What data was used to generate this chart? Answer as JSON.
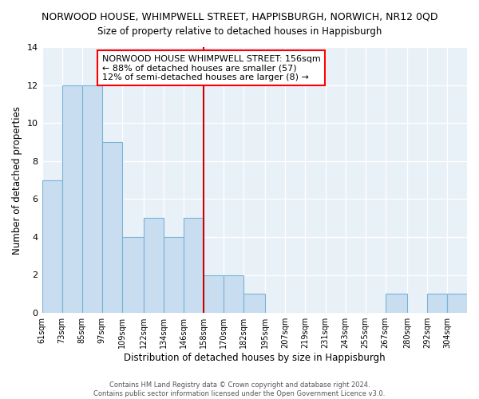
{
  "title": "NORWOOD HOUSE, WHIMPWELL STREET, HAPPISBURGH, NORWICH, NR12 0QD",
  "subtitle": "Size of property relative to detached houses in Happisburgh",
  "xlabel": "Distribution of detached houses by size in Happisburgh",
  "ylabel": "Number of detached properties",
  "bin_edges": [
    61,
    73,
    85,
    97,
    109,
    122,
    134,
    146,
    158,
    170,
    182,
    195,
    207,
    219,
    231,
    243,
    255,
    267,
    280,
    292,
    304,
    316
  ],
  "bin_labels": [
    "61sqm",
    "73sqm",
    "85sqm",
    "97sqm",
    "109sqm",
    "122sqm",
    "134sqm",
    "146sqm",
    "158sqm",
    "170sqm",
    "182sqm",
    "195sqm",
    "207sqm",
    "219sqm",
    "231sqm",
    "243sqm",
    "255sqm",
    "267sqm",
    "280sqm",
    "292sqm",
    "304sqm"
  ],
  "values": [
    7,
    12,
    12,
    9,
    4,
    5,
    4,
    5,
    2,
    2,
    1,
    0,
    0,
    0,
    0,
    0,
    0,
    1,
    0,
    1,
    1
  ],
  "bar_color": "#c8ddf0",
  "bar_edge_color": "#7ab3d4",
  "marker_value": 158,
  "marker_label": "NORWOOD HOUSE WHIMPWELL STREET: 156sqm",
  "marker_line1": "← 88% of detached houses are smaller (57)",
  "marker_line2": "12% of semi-detached houses are larger (8) →",
  "marker_color": "#cc0000",
  "ylim": [
    0,
    14
  ],
  "yticks": [
    0,
    2,
    4,
    6,
    8,
    10,
    12,
    14
  ],
  "background_color": "#ffffff",
  "plot_bg_color": "#e8f0f8",
  "grid_color": "#ffffff",
  "footer_line1": "Contains HM Land Registry data © Crown copyright and database right 2024.",
  "footer_line2": "Contains public sector information licensed under the Open Government Licence v3.0."
}
